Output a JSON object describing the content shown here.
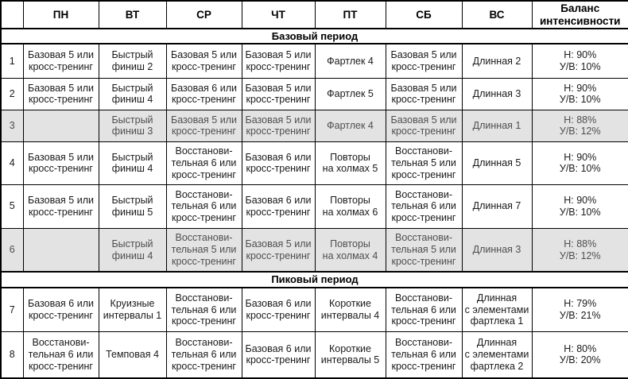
{
  "colors": {
    "border": "#000000",
    "shaded_row_bg": "#e3e3e3",
    "shaded_row_text": "#4f4f4f",
    "text": "#1a1a1a"
  },
  "header": {
    "corner": "",
    "cols": [
      "ПН",
      "ВТ",
      "СР",
      "ЧТ",
      "ПТ",
      "СБ",
      "ВС",
      "Баланс\nинтенсивности"
    ]
  },
  "sections": [
    {
      "title": "Базовый период"
    },
    {
      "title": "Пиковый период"
    }
  ],
  "rows": [
    {
      "num": "1",
      "pn": "Базовая 5 или\nкросс-тренинг",
      "vt": "Быстрый\nфиниш 2",
      "sr": "Базовая 5 или\nкросс-тренинг",
      "cht": "Базовая 5 или\nкросс-тренинг",
      "pt": "Фартлек 4",
      "sb": "Базовая 5 или\nкросс-тренинг",
      "vs": "Длинная 2",
      "balance": "Н: 90%\nУ/В: 10%"
    },
    {
      "num": "2",
      "pn": "Базовая 5 или\nкросс-тренинг",
      "vt": "Быстрый\nфиниш 4",
      "sr": "Базовая 6 или\nкросс-тренинг",
      "cht": "Базовая 5 или\nкросс-тренинг",
      "pt": "Фартлек 5",
      "sb": "Базовая 5 или\nкросс-тренинг",
      "vs": "Длинная 3",
      "balance": "Н: 90%\nУ/В: 10%"
    },
    {
      "num": "3",
      "pn": "",
      "vt": "Быстрый\nфиниш 3",
      "sr": "Базовая 5 или\nкросс-тренинг",
      "cht": "Базовая 5 или\nкросс-тренинг",
      "pt": "Фартлек 4",
      "sb": "Базовая 5 или\nкросс-тренинг",
      "vs": "Длинная 1",
      "balance": "Н: 88%\nУ/В: 12%"
    },
    {
      "num": "4",
      "pn": "Базовая 5 или\nкросс-тренинг",
      "vt": "Быстрый\nфиниш 4",
      "sr": "Восстанови-\nтельная 6 или\nкросс-тренинг",
      "cht": "Базовая 6 или\nкросс-тренинг",
      "pt": "Повторы\nна холмах 5",
      "sb": "Восстанови-\nтельная 5 или\nкросс-тренинг",
      "vs": "Длинная 5",
      "balance": "Н: 90%\nУ/В: 10%"
    },
    {
      "num": "5",
      "pn": "Базовая 5 или\nкросс-тренинг",
      "vt": "Быстрый\nфиниш 5",
      "sr": "Восстанови-\nтельная 6 или\nкросс-тренинг",
      "cht": "Базовая 6 или\nкросс-тренинг",
      "pt": "Повторы\nна холмах 6",
      "sb": "Восстанови-\nтельная 6 или\nкросс-тренинг",
      "vs": "Длинная 7",
      "balance": "Н: 90%\nУ/В: 10%"
    },
    {
      "num": "6",
      "pn": "",
      "vt": "Быстрый\nфиниш 4",
      "sr": "Восстанови-\nтельная 5 или\nкросс-тренинг",
      "cht": "Базовая 5 или\nкросс-тренинг",
      "pt": "Повторы\nна холмах 4",
      "sb": "Восстанови-\nтельная 5 или\nкросс-тренинг",
      "vs": "Длинная 3",
      "balance": "Н: 88%\nУ/В: 12%"
    },
    {
      "num": "7",
      "pn": "Базовая 6 или\nкросс-тренинг",
      "vt": "Круизные\nинтервалы 1",
      "sr": "Восстанови-\nтельная 6 или\nкросс-тренинг",
      "cht": "Базовая 6 или\nкросс-тренинг",
      "pt": "Короткие\nинтервалы 4",
      "sb": "Восстанови-\nтельная 6 или\nкросс-тренинг",
      "vs": "Длинная\nс элементами\nфартлека 1",
      "balance": "Н: 79%\nУ/В: 21%"
    },
    {
      "num": "8",
      "pn": "Восстанови-\nтельная 6 или\nкросс-тренинг",
      "vt": "Темповая 4",
      "sr": "Восстанови-\nтельная 6 или\nкросс-тренинг",
      "cht": "Базовая 6 или\nкросс-тренинг",
      "pt": "Короткие\nинтервалы 5",
      "sb": "Восстанови-\nтельная 6 или\nкросс-тренинг",
      "vs": "Длинная\nс элементами\nфартлека 2",
      "balance": "Н: 80%\nУ/В: 20%"
    }
  ]
}
